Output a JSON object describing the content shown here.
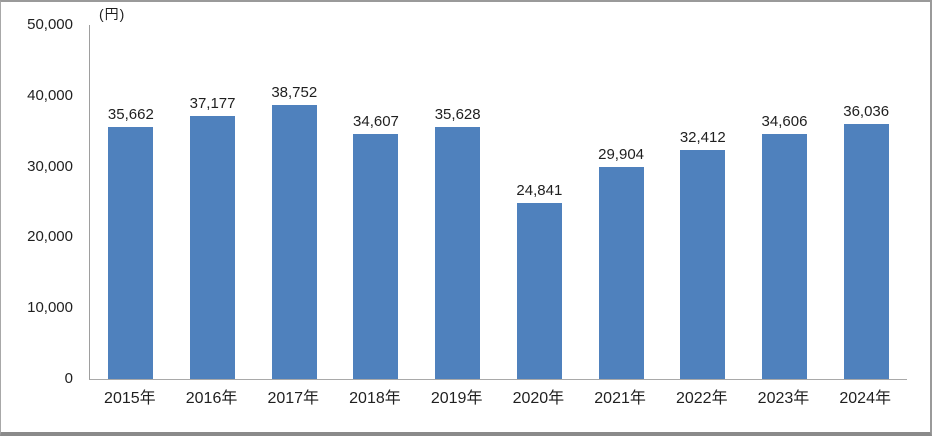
{
  "colors": {
    "bar_fill": "#4f81bd",
    "y_axis_line": "#9e9e9e",
    "x_axis_line": "#a9a9a9",
    "frame_border": "#9a9a9a",
    "text": "#1f1f1f"
  },
  "chart_data": {
    "type": "bar",
    "title": "",
    "xlabel": "",
    "ylabel": "(円)",
    "categories": [
      "2015年",
      "2016年",
      "2017年",
      "2018年",
      "2019年",
      "2020年",
      "2021年",
      "2022年",
      "2023年",
      "2024年"
    ],
    "values": [
      35662,
      37177,
      38752,
      34607,
      35628,
      24841,
      29904,
      32412,
      34606,
      36036
    ],
    "value_labels": [
      "35,662",
      "37,177",
      "38,752",
      "34,607",
      "35,628",
      "24,841",
      "29,904",
      "32,412",
      "34,606",
      "36,036"
    ],
    "ylim": [
      0,
      50000
    ],
    "yticks": [
      0,
      10000,
      20000,
      30000,
      40000,
      50000
    ],
    "ytick_labels": [
      "0",
      "10,000",
      "20,000",
      "30,000",
      "40,000",
      "50,000"
    ],
    "grid": false,
    "legend": "none"
  }
}
